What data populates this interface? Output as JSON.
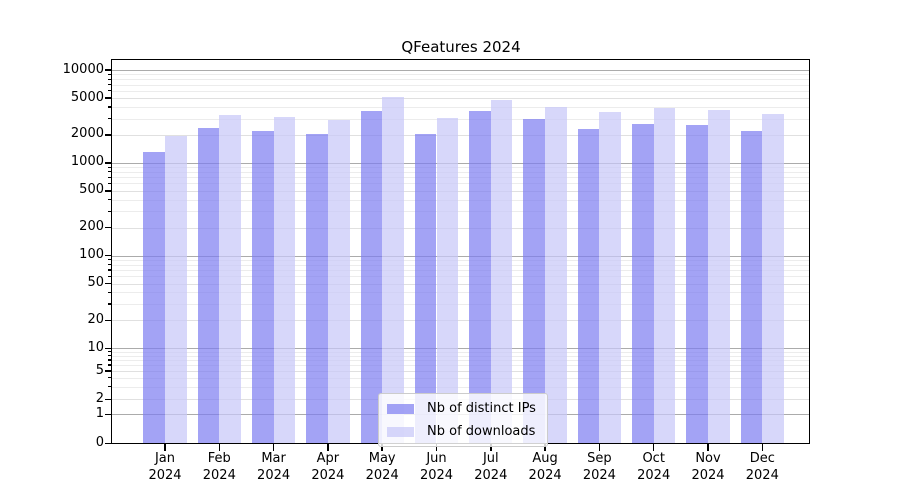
{
  "chart_data": {
    "type": "bar",
    "title": "QFeatures 2024",
    "categories": [
      "Jan",
      "Feb",
      "Mar",
      "Apr",
      "May",
      "Jun",
      "Jul",
      "Aug",
      "Sep",
      "Oct",
      "Nov",
      "Dec"
    ],
    "category_year": "2024",
    "series": [
      {
        "name": "Nb of distinct IPs",
        "color": "#a3a3f5",
        "values": [
          1300,
          2400,
          2200,
          2050,
          3600,
          2050,
          3650,
          2950,
          2350,
          2600,
          2550,
          2200
        ]
      },
      {
        "name": "Nb of downloads",
        "color": "#d8d8fa",
        "values": [
          1950,
          3250,
          3100,
          2900,
          5100,
          3050,
          4800,
          4050,
          3500,
          3900,
          3700,
          3400
        ]
      }
    ],
    "y_axis": {
      "scale": "symlog",
      "ticks": [
        0,
        1,
        2,
        5,
        10,
        20,
        50,
        100,
        200,
        500,
        1000,
        2000,
        5000,
        10000
      ],
      "ylim": [
        0,
        14000
      ]
    },
    "x_axis": {
      "label": ""
    },
    "grid": true,
    "legend": {
      "position": "lower center"
    }
  }
}
